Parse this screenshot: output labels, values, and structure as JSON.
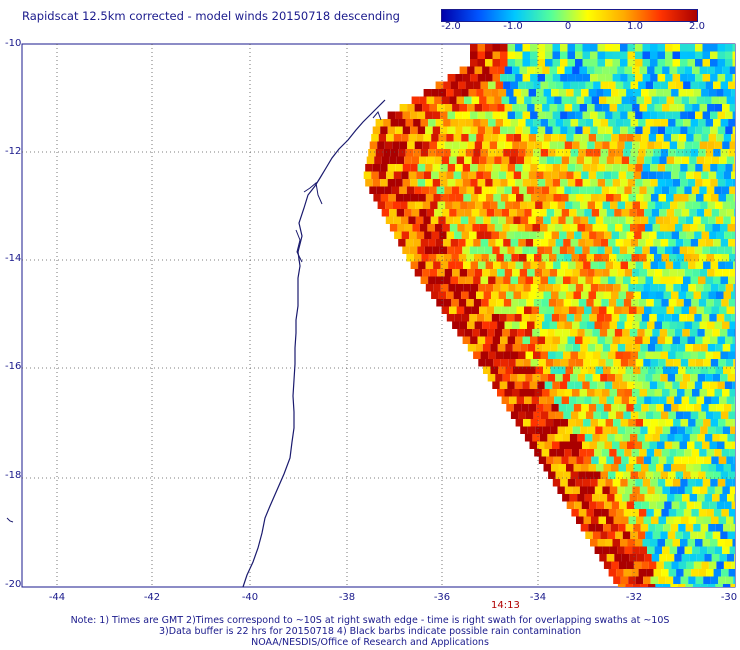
{
  "title": "Rapidscat 12.5km corrected - model winds 20150718 descending",
  "colorbar": {
    "tick_labels": [
      "-2.0",
      "-1.0",
      "0",
      "1.0",
      "2.0"
    ],
    "colors": [
      "#0000aa",
      "#0055ff",
      "#00c8ff",
      "#55ff99",
      "#ffff00",
      "#ffaa00",
      "#ff3300",
      "#aa0000"
    ]
  },
  "lat_labels": [
    "-10",
    "-12",
    "-14",
    "-16",
    "-18",
    "-20"
  ],
  "lon_labels": [
    "-44",
    "-42",
    "-40",
    "-38",
    "-36",
    "-34",
    "-32",
    "-30"
  ],
  "time_label": "14:13",
  "notes": [
    "Note: 1) Times are GMT 2)Times correspond to ~10S at right swath edge - time is right swath for overlapping swaths at ~10S",
    "3)Data buffer is 22 hrs for 20150718 4) Black barbs indicate possible rain contamination",
    "NOAA/NESDIS/Office of Research and Applications"
  ],
  "map": {
    "lat_range": [
      -20,
      -10
    ],
    "lon_range": [
      -45,
      -30
    ],
    "grid": true,
    "coastline_color": "#1a1a6e"
  }
}
